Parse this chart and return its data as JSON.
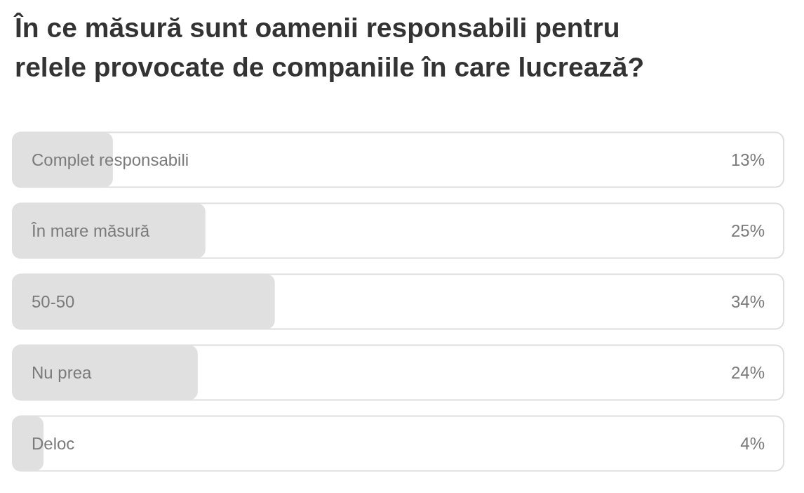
{
  "chart_data": {
    "type": "bar",
    "orientation": "horizontal",
    "title": "În ce măsură sunt oamenii responsabili pentru relele provocate de companiile în care lucrează?",
    "categories": [
      "Complet responsabili",
      "În mare măsură",
      "50-50",
      "Nu prea",
      "Deloc"
    ],
    "values": [
      13,
      25,
      34,
      24,
      4
    ],
    "value_labels": [
      "13%",
      "25%",
      "34%",
      "24%",
      "4%"
    ],
    "color": "#e0e0e0",
    "xlim": [
      0,
      100
    ],
    "tick_labels": "y"
  }
}
